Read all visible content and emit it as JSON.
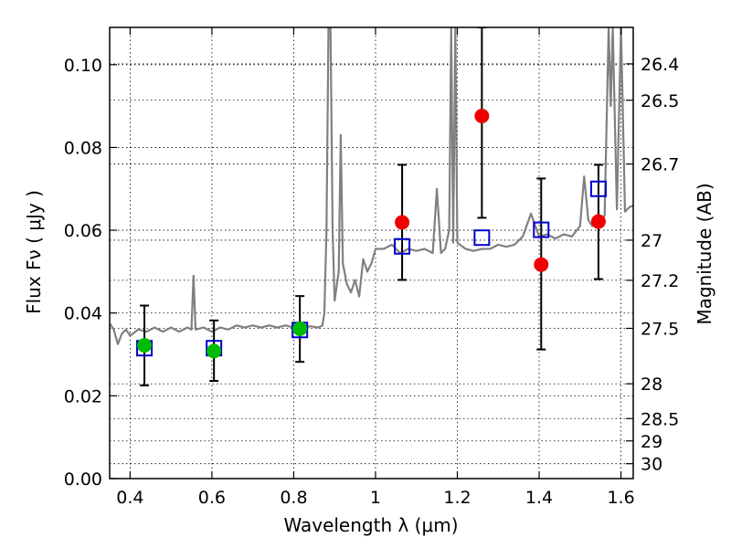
{
  "chart_data": {
    "type": "scatter",
    "xlabel": "Wavelength  λ (μm)",
    "ylabel": "Flux  Fν  ( μJy )",
    "ylabel_right": "Magnitude (AB)",
    "xlim": [
      0.35,
      1.63
    ],
    "ylim": [
      0.0,
      0.109
    ],
    "grid": true,
    "x_ticks": [
      0.4,
      0.6,
      0.8,
      1.0,
      1.2,
      1.4,
      1.6
    ],
    "x_tick_labels": [
      "0.4",
      "0.6",
      "0.8",
      "1",
      "1.2",
      "1.4",
      "1.6"
    ],
    "y_ticks": [
      0.0,
      0.02,
      0.04,
      0.06,
      0.08,
      0.1
    ],
    "y_tick_labels": [
      "0.00",
      "0.02",
      "0.04",
      "0.06",
      "0.08",
      "0.10"
    ],
    "right_ticks": [
      {
        "label": "26.4",
        "flux": 0.1002
      },
      {
        "label": "26.5",
        "flux": 0.0914
      },
      {
        "label": "26.7",
        "flux": 0.076
      },
      {
        "label": "27",
        "flux": 0.0576
      },
      {
        "label": "27.2",
        "flux": 0.0479
      },
      {
        "label": "27.5",
        "flux": 0.0363
      },
      {
        "label": "28",
        "flux": 0.0229
      },
      {
        "label": "28.5",
        "flux": 0.0145
      },
      {
        "label": "29",
        "flux": 0.0091
      },
      {
        "label": "30",
        "flux": 0.0036
      }
    ],
    "series": [
      {
        "marker": "circle",
        "color": "#00bb00",
        "points": [
          {
            "x": 0.435,
            "y": 0.0322,
            "err_low": 0.0225,
            "err_high": 0.0418
          },
          {
            "x": 0.605,
            "y": 0.0308,
            "err_low": 0.0236,
            "err_high": 0.0382
          },
          {
            "x": 0.815,
            "y": 0.0362,
            "err_low": 0.0282,
            "err_high": 0.0441
          }
        ]
      },
      {
        "marker": "circle",
        "color": "#ee0000",
        "points": [
          {
            "x": 1.065,
            "y": 0.0619,
            "err_low": 0.048,
            "err_high": 0.0758
          },
          {
            "x": 1.26,
            "y": 0.0876,
            "err_low": 0.063,
            "err_high": 0.109
          },
          {
            "x": 1.405,
            "y": 0.0517,
            "err_low": 0.0312,
            "err_high": 0.0725
          },
          {
            "x": 1.545,
            "y": 0.0621,
            "err_low": 0.0482,
            "err_high": 0.0758
          }
        ]
      },
      {
        "marker": "open-square",
        "color": "#0000cc",
        "points": [
          {
            "x": 0.435,
            "y": 0.0315
          },
          {
            "x": 0.605,
            "y": 0.0315
          },
          {
            "x": 0.815,
            "y": 0.0359
          },
          {
            "x": 1.065,
            "y": 0.0561
          },
          {
            "x": 1.26,
            "y": 0.0582
          },
          {
            "x": 1.405,
            "y": 0.0601
          },
          {
            "x": 1.545,
            "y": 0.07
          }
        ]
      },
      {
        "marker": "line",
        "color": "#808080",
        "x": [
          0.35,
          0.36,
          0.37,
          0.38,
          0.39,
          0.4,
          0.42,
          0.44,
          0.46,
          0.48,
          0.5,
          0.52,
          0.54,
          0.55,
          0.555,
          0.56,
          0.58,
          0.6,
          0.62,
          0.64,
          0.66,
          0.68,
          0.7,
          0.72,
          0.74,
          0.76,
          0.78,
          0.8,
          0.82,
          0.84,
          0.86,
          0.87,
          0.875,
          0.88,
          0.885,
          0.89,
          0.895,
          0.9,
          0.91,
          0.915,
          0.92,
          0.93,
          0.94,
          0.95,
          0.96,
          0.97,
          0.98,
          0.99,
          1.0,
          1.02,
          1.04,
          1.06,
          1.08,
          1.1,
          1.12,
          1.14,
          1.15,
          1.16,
          1.17,
          1.18,
          1.185,
          1.19,
          1.195,
          1.2,
          1.22,
          1.24,
          1.26,
          1.28,
          1.3,
          1.32,
          1.34,
          1.36,
          1.38,
          1.4,
          1.42,
          1.44,
          1.46,
          1.48,
          1.5,
          1.51,
          1.52,
          1.53,
          1.54,
          1.55,
          1.56,
          1.57,
          1.575,
          1.58,
          1.59,
          1.6,
          1.61,
          1.62,
          1.63
        ],
        "y": [
          0.0375,
          0.036,
          0.0325,
          0.035,
          0.036,
          0.0345,
          0.036,
          0.0355,
          0.0365,
          0.0355,
          0.0365,
          0.0355,
          0.0365,
          0.036,
          0.049,
          0.036,
          0.0365,
          0.0355,
          0.0365,
          0.036,
          0.037,
          0.0365,
          0.037,
          0.0365,
          0.037,
          0.0365,
          0.037,
          0.0365,
          0.0362,
          0.0368,
          0.0365,
          0.037,
          0.04,
          0.06,
          0.109,
          0.109,
          0.06,
          0.043,
          0.05,
          0.083,
          0.052,
          0.047,
          0.045,
          0.048,
          0.044,
          0.053,
          0.05,
          0.052,
          0.0555,
          0.0555,
          0.0565,
          0.0545,
          0.0555,
          0.055,
          0.0555,
          0.0545,
          0.07,
          0.0545,
          0.0555,
          0.06,
          0.109,
          0.057,
          0.109,
          0.057,
          0.0555,
          0.055,
          0.0555,
          0.0555,
          0.0565,
          0.056,
          0.0565,
          0.0585,
          0.064,
          0.0585,
          0.059,
          0.058,
          0.059,
          0.0585,
          0.061,
          0.073,
          0.0625,
          0.061,
          0.062,
          0.0625,
          0.0635,
          0.109,
          0.09,
          0.109,
          0.065,
          0.109,
          0.0645,
          0.0655,
          0.066
        ]
      }
    ]
  }
}
